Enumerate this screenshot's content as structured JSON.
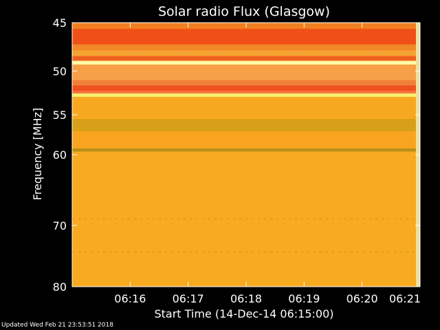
{
  "chart_data": {
    "type": "heatmap",
    "title": "Solar radio Flux (Glasgow)",
    "xlabel": "Start Time (14-Dec-14 06:15:00)",
    "ylabel": "Frequency [MHz]",
    "y_scale": "log",
    "ylim": [
      45,
      80
    ],
    "y_ticks": [
      {
        "value": 45,
        "label": "45"
      },
      {
        "value": 50,
        "label": "50"
      },
      {
        "value": 55,
        "label": "55"
      },
      {
        "value": 60,
        "label": "60"
      },
      {
        "value": 70,
        "label": "70"
      },
      {
        "value": 80,
        "label": "80"
      }
    ],
    "xlim": [
      "06:15:00",
      "06:21:00"
    ],
    "x_ticks": [
      {
        "value": "06:16",
        "label": "06:16"
      },
      {
        "value": "06:17",
        "label": "06:17"
      },
      {
        "value": "06:18",
        "label": "06:18"
      },
      {
        "value": "06:19",
        "label": "06:19"
      },
      {
        "value": "06:20",
        "label": "06:20"
      },
      {
        "value": "06:21",
        "label": "06:21"
      }
    ],
    "bands": [
      {
        "from": 45.0,
        "to": 45.6,
        "color": "#f08020"
      },
      {
        "from": 45.6,
        "to": 47.2,
        "color": "#f05018"
      },
      {
        "from": 47.2,
        "to": 47.8,
        "color": "#f08828"
      },
      {
        "from": 47.8,
        "to": 48.4,
        "color": "#f8a030"
      },
      {
        "from": 48.4,
        "to": 48.9,
        "color": "#f06020"
      },
      {
        "from": 48.9,
        "to": 49.3,
        "color": "#ffffa8"
      },
      {
        "from": 49.3,
        "to": 51.0,
        "color": "#f8a048"
      },
      {
        "from": 51.0,
        "to": 51.6,
        "color": "#f08038"
      },
      {
        "from": 51.6,
        "to": 52.2,
        "color": "#f05020"
      },
      {
        "from": 52.2,
        "to": 52.5,
        "color": "#f87040"
      },
      {
        "from": 52.5,
        "to": 52.9,
        "color": "#f8f070"
      },
      {
        "from": 52.9,
        "to": 55.5,
        "color": "#f8a820"
      },
      {
        "from": 55.5,
        "to": 57.0,
        "color": "#d8a018"
      },
      {
        "from": 57.0,
        "to": 59.2,
        "color": "#f8a420"
      },
      {
        "from": 59.2,
        "to": 59.6,
        "color": "#b89018"
      },
      {
        "from": 59.6,
        "to": 80.0,
        "color": "#f8aa20"
      }
    ],
    "lines": [
      {
        "freq": 48.1,
        "color": "#c8c040"
      },
      {
        "freq": 69.0,
        "color": "#f09018"
      },
      {
        "freq": 74.2,
        "color": "#d89818"
      }
    ]
  },
  "footer": "Updated Wed Feb 21 23:53:51 2018"
}
